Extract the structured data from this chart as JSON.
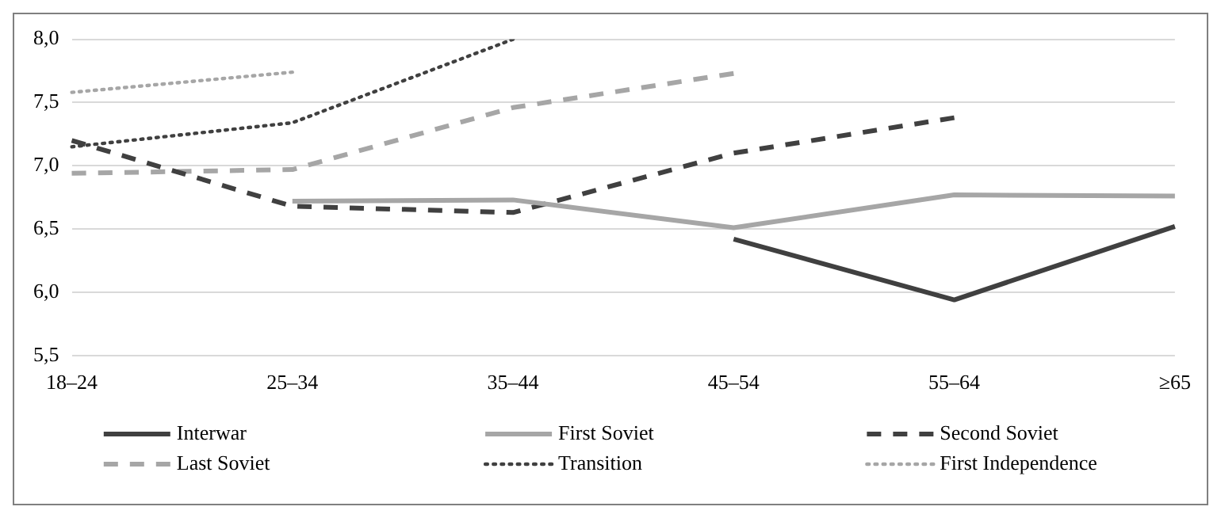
{
  "chart_data": {
    "type": "line",
    "categories": [
      "18–24",
      "25–34",
      "35–44",
      "45–54",
      "55–64",
      "≥65"
    ],
    "ylim": [
      5.5,
      8.0
    ],
    "yticks": [
      {
        "value": 5.5,
        "label": "5,5"
      },
      {
        "value": 6.0,
        "label": "6,0"
      },
      {
        "value": 6.5,
        "label": "6,5"
      },
      {
        "value": 7.0,
        "label": "7,0"
      },
      {
        "value": 7.5,
        "label": "7,5"
      },
      {
        "value": 8.0,
        "label": "8,0"
      }
    ],
    "grid": "y",
    "legend": "bottom",
    "marker": "none",
    "series": [
      {
        "name": "Interwar",
        "color": "#404040",
        "line_style": "solid",
        "values": [
          null,
          null,
          null,
          6.42,
          5.94,
          6.52
        ]
      },
      {
        "name": "First Soviet",
        "color": "#a6a6a6",
        "line_style": "solid",
        "values": [
          null,
          6.72,
          6.73,
          6.51,
          6.77,
          6.76
        ]
      },
      {
        "name": "Second Soviet",
        "color": "#404040",
        "line_style": "dashed",
        "values": [
          7.2,
          6.68,
          6.63,
          7.1,
          7.38,
          null
        ]
      },
      {
        "name": "Last Soviet",
        "color": "#a6a6a6",
        "line_style": "dashed",
        "values": [
          6.94,
          6.97,
          7.46,
          7.73,
          null,
          null
        ]
      },
      {
        "name": "Transition",
        "color": "#404040",
        "line_style": "dotted",
        "values": [
          7.15,
          7.34,
          8.0,
          null,
          null,
          null
        ]
      },
      {
        "name": "First Independence",
        "color": "#a6a6a6",
        "line_style": "dotted",
        "values": [
          7.58,
          7.74,
          null,
          null,
          null,
          null
        ]
      }
    ]
  }
}
